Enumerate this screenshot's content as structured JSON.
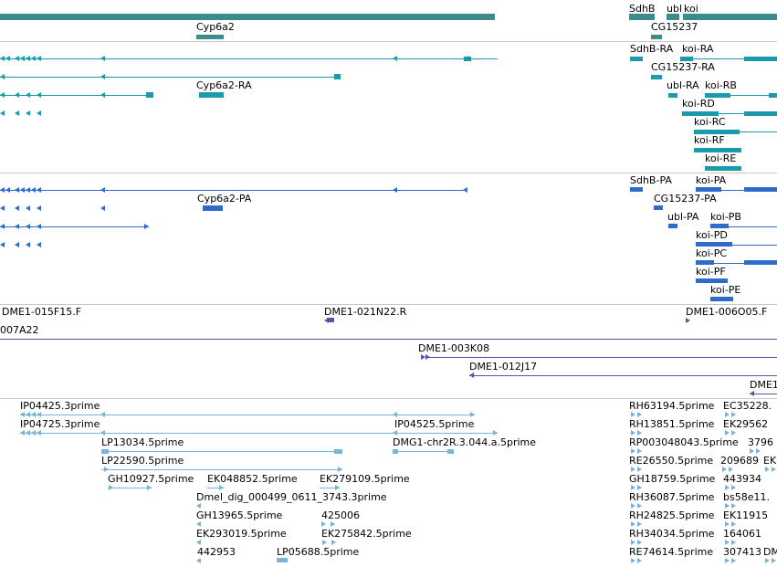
{
  "colors": {
    "gene": "#3d8c8c",
    "transcript": "#199bac",
    "protein": "#2f6bc8",
    "clone": "#6a4ca8",
    "est": "#79b3d8",
    "separator": "#c8c8c8"
  },
  "tracks": {
    "genes": {
      "labels": [
        "Cyp6a2",
        "SdhB",
        "ubl",
        "koi",
        "CG15237"
      ]
    },
    "transcripts": {
      "labels": [
        "SdhB-RA",
        "koi-RA",
        "CG15237-RA",
        "Cyp6a2-RA",
        "ubl-RA",
        "koi-RB",
        "koi-RD",
        "koi-RC",
        "koi-RF",
        "koi-RE"
      ]
    },
    "proteins": {
      "labels": [
        "SdhB-PA",
        "koi-PA",
        "Cyp6a2-PA",
        "CG15237-PA",
        "ubl-PA",
        "koi-PB",
        "koi-PD",
        "koi-PC",
        "koi-PF",
        "koi-PE"
      ]
    },
    "clones": {
      "labels": [
        "DME1-015F15.F",
        "DME1-021N22.R",
        "DME1-006O05.F",
        "007A22",
        "DME1-003K08",
        "DME1-012J17",
        "DME1"
      ]
    },
    "ests": {
      "labels": [
        "IP04425.3prime",
        "IP04725.3prime",
        "IP04525.5prime",
        "LP13034.5prime",
        "DMG1-chr2R.3.044.a.5prime",
        "LP22590.5prime",
        "GH10927.5prime",
        "EK048852.5prime",
        "EK279109.5prime",
        "Dmel_dig_000499_0611_3743.3prime",
        "GH13965.5prime",
        "425006",
        "EK293019.5prime",
        "EK275842.5prime",
        "442953",
        "LP05688.5prime",
        "RH63194.5prime",
        "EC35228.",
        "RH13851.5prime",
        "EK29562",
        "RP003048043.5prime",
        "3796",
        "RE26550.5prime",
        "209689",
        "EK",
        "GH18759.5prime",
        "443934",
        "RH36087.5prime",
        "bs58e11.",
        "RH24825.5prime",
        "EK11915",
        "RH34034.5prime",
        "164061",
        "RE74614.5prime",
        "307413",
        "DM"
      ]
    }
  }
}
